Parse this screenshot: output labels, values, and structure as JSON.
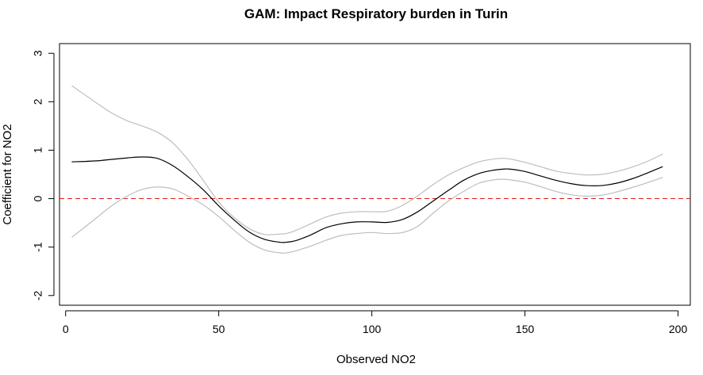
{
  "chart_data": {
    "type": "line",
    "title": "GAM: Impact Respiratory burden in Turin",
    "xlabel": "Observed NO2",
    "ylabel": "Coefficient for NO2",
    "xlim": [
      -2,
      204
    ],
    "ylim": [
      -2.2,
      3.2
    ],
    "x_ticks": [
      0,
      50,
      100,
      150,
      200
    ],
    "y_ticks": [
      -2,
      -1,
      0,
      1,
      2,
      3
    ],
    "x_tick_labels": [
      "0",
      "50",
      "100",
      "150",
      "200"
    ],
    "y_tick_labels": [
      "-2",
      "-1",
      "0",
      "1",
      "2",
      "3"
    ],
    "grid": false,
    "reference_line": {
      "y": 0,
      "style": "dashed",
      "color": "#e31a1c"
    },
    "series": [
      {
        "role": "fit",
        "color": "#000000",
        "x": [
          2,
          10,
          20,
          25,
          30,
          35,
          40,
          45,
          50,
          55,
          60,
          65,
          70,
          72,
          75,
          80,
          85,
          90,
          95,
          100,
          105,
          110,
          115,
          120,
          125,
          130,
          135,
          140,
          143,
          145,
          150,
          155,
          160,
          165,
          170,
          175,
          180,
          185,
          190,
          195
        ],
        "y": [
          0.76,
          0.78,
          0.84,
          0.86,
          0.83,
          0.68,
          0.45,
          0.18,
          -0.15,
          -0.44,
          -0.69,
          -0.84,
          -0.9,
          -0.9,
          -0.87,
          -0.75,
          -0.6,
          -0.52,
          -0.48,
          -0.48,
          -0.49,
          -0.43,
          -0.27,
          -0.05,
          0.17,
          0.38,
          0.52,
          0.59,
          0.61,
          0.61,
          0.56,
          0.47,
          0.38,
          0.31,
          0.27,
          0.27,
          0.32,
          0.41,
          0.53,
          0.66
        ]
      },
      {
        "role": "upper-band",
        "color": "#bebebe",
        "x": [
          2,
          10,
          15,
          20,
          25,
          30,
          35,
          40,
          45,
          50,
          55,
          60,
          65,
          70,
          72,
          75,
          80,
          85,
          90,
          95,
          100,
          105,
          110,
          115,
          120,
          125,
          130,
          135,
          140,
          143,
          145,
          150,
          155,
          160,
          165,
          170,
          175,
          180,
          185,
          190,
          195
        ],
        "y": [
          2.33,
          1.98,
          1.77,
          1.61,
          1.5,
          1.37,
          1.15,
          0.8,
          0.37,
          -0.07,
          -0.39,
          -0.62,
          -0.74,
          -0.73,
          -0.72,
          -0.66,
          -0.52,
          -0.38,
          -0.3,
          -0.27,
          -0.27,
          -0.26,
          -0.14,
          0.06,
          0.29,
          0.49,
          0.64,
          0.76,
          0.82,
          0.83,
          0.82,
          0.75,
          0.66,
          0.57,
          0.52,
          0.49,
          0.5,
          0.56,
          0.65,
          0.77,
          0.92
        ]
      },
      {
        "role": "lower-band",
        "color": "#bebebe",
        "x": [
          2,
          10,
          15,
          20,
          25,
          30,
          35,
          40,
          45,
          50,
          55,
          60,
          65,
          70,
          72,
          75,
          80,
          85,
          90,
          95,
          100,
          105,
          110,
          115,
          120,
          125,
          130,
          135,
          140,
          143,
          145,
          150,
          155,
          160,
          165,
          170,
          175,
          180,
          185,
          190,
          195
        ],
        "y": [
          -0.8,
          -0.4,
          -0.15,
          0.05,
          0.19,
          0.24,
          0.2,
          0.05,
          -0.13,
          -0.37,
          -0.65,
          -0.9,
          -1.06,
          -1.12,
          -1.12,
          -1.08,
          -0.98,
          -0.86,
          -0.76,
          -0.72,
          -0.7,
          -0.72,
          -0.7,
          -0.57,
          -0.3,
          -0.05,
          0.15,
          0.32,
          0.39,
          0.4,
          0.39,
          0.34,
          0.25,
          0.15,
          0.08,
          0.05,
          0.07,
          0.14,
          0.23,
          0.33,
          0.44
        ]
      }
    ]
  }
}
